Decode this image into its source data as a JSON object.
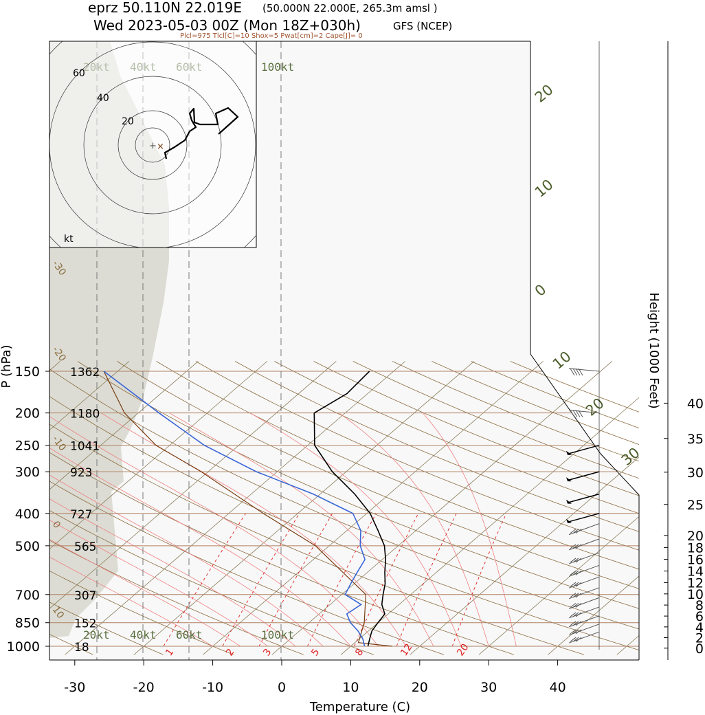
{
  "header": {
    "station_line": "eprz 50.110N 22.019E",
    "station_detail": "(50.000N 22.000E, 265.3m amsl )",
    "time_line": "Wed 2023-05-03 00Z (Mon 18Z+030h)",
    "model": "GFS (NCEP)",
    "indices": "Plcl=975 Tlcl[C]=10 Shox=5 Pwat[cm]=2 Cape[J]= 0"
  },
  "colors": {
    "temperature": "#000000",
    "dewpoint": "#3a66d6",
    "parcel": "#7a3b10",
    "isobar": "#b08060",
    "dry_adiabat": "#8b6b3e",
    "moist_adiabat": "#f08080",
    "mixing_ratio": "#e02020",
    "height_label": "#4b5e2a",
    "shading": "#dcdcd4",
    "background": "#f8f8f8"
  },
  "chart_data": {
    "type": "skew-t",
    "xlabel": "Temperature (C)",
    "ylabel": "P (hPa)",
    "y2label": "Height (1000 Feet)",
    "xlim": [
      -34,
      52
    ],
    "x_ticks": [
      "-30",
      "-20",
      "-10",
      "0",
      "10",
      "20",
      "30",
      "40"
    ],
    "x_tick_values": [
      -30,
      -20,
      -10,
      0,
      10,
      20,
      30,
      40
    ],
    "pressure_levels": [
      150,
      200,
      250,
      300,
      400,
      500,
      700,
      850,
      1000
    ],
    "pressure_labels": [
      "150",
      "200",
      "250",
      "300",
      "400",
      "500",
      "700",
      "850",
      "1000"
    ],
    "level_heights_m": [
      "1362",
      "1180",
      "1041",
      "923",
      "727",
      "565",
      "307",
      "152",
      "18"
    ],
    "height_ticks_kft": [
      "0",
      "2",
      "4",
      "6",
      "8",
      "10",
      "12",
      "14",
      "16",
      "18",
      "20",
      "25",
      "30",
      "35",
      "40"
    ],
    "height_tick_values": [
      0,
      2,
      4,
      6,
      8,
      10,
      12,
      14,
      16,
      18,
      20,
      25,
      30,
      35,
      40
    ],
    "dry_adiabat_labels": [
      "-30",
      "-20",
      "-10",
      "0",
      "10"
    ],
    "freezing_level_labels": [
      "20",
      "10",
      "0",
      "10",
      "20",
      "30"
    ],
    "mixing_ratio_labels": [
      "1",
      "2",
      "3",
      "5",
      "8",
      "12",
      "20"
    ],
    "wind_scale_labels": [
      "20kt",
      "40kt",
      "60kt",
      "100kt"
    ],
    "temperature": [
      {
        "p": 1000,
        "t": 12.5
      },
      {
        "p": 950,
        "t": 11.5
      },
      {
        "p": 900,
        "t": 10.5
      },
      {
        "p": 850,
        "t": 10.0
      },
      {
        "p": 800,
        "t": 9.5
      },
      {
        "p": 750,
        "t": 7.5
      },
      {
        "p": 700,
        "t": 6.0
      },
      {
        "p": 650,
        "t": 4.5
      },
      {
        "p": 600,
        "t": 2.5
      },
      {
        "p": 550,
        "t": 0.5
      },
      {
        "p": 500,
        "t": -2.0
      },
      {
        "p": 450,
        "t": -5.5
      },
      {
        "p": 400,
        "t": -9.5
      },
      {
        "p": 350,
        "t": -15.0
      },
      {
        "p": 300,
        "t": -22.0
      },
      {
        "p": 250,
        "t": -29.0
      },
      {
        "p": 200,
        "t": -34.5
      },
      {
        "p": 175,
        "t": -33.0
      },
      {
        "p": 150,
        "t": -33.5
      }
    ],
    "dewpoint": [
      {
        "p": 1000,
        "td": 12.0
      },
      {
        "p": 950,
        "td": 10.5
      },
      {
        "p": 900,
        "td": 8.5
      },
      {
        "p": 850,
        "td": 6.0
      },
      {
        "p": 800,
        "td": 4.0
      },
      {
        "p": 750,
        "td": 4.5
      },
      {
        "p": 700,
        "td": 0.5
      },
      {
        "p": 650,
        "td": -0.5
      },
      {
        "p": 600,
        "td": -1.5
      },
      {
        "p": 550,
        "td": -2.5
      },
      {
        "p": 500,
        "td": -5.5
      },
      {
        "p": 450,
        "td": -8.0
      },
      {
        "p": 400,
        "td": -12.0
      },
      {
        "p": 350,
        "td": -21.0
      },
      {
        "p": 300,
        "td": -33.0
      },
      {
        "p": 250,
        "td": -45.0
      },
      {
        "p": 200,
        "td": -57.0
      },
      {
        "p": 150,
        "td": -72.0
      }
    ],
    "parcel": [
      {
        "p": 1000,
        "t": 16.0
      },
      {
        "p": 975,
        "t": 10.5
      },
      {
        "p": 850,
        "t": 8.0
      },
      {
        "p": 700,
        "t": 3.5
      },
      {
        "p": 500,
        "t": -12.0
      },
      {
        "p": 400,
        "t": -25.0
      },
      {
        "p": 300,
        "t": -41.0
      },
      {
        "p": 250,
        "t": -52.0
      },
      {
        "p": 200,
        "t": -62.0
      },
      {
        "p": 150,
        "t": -72.0
      }
    ]
  }
}
